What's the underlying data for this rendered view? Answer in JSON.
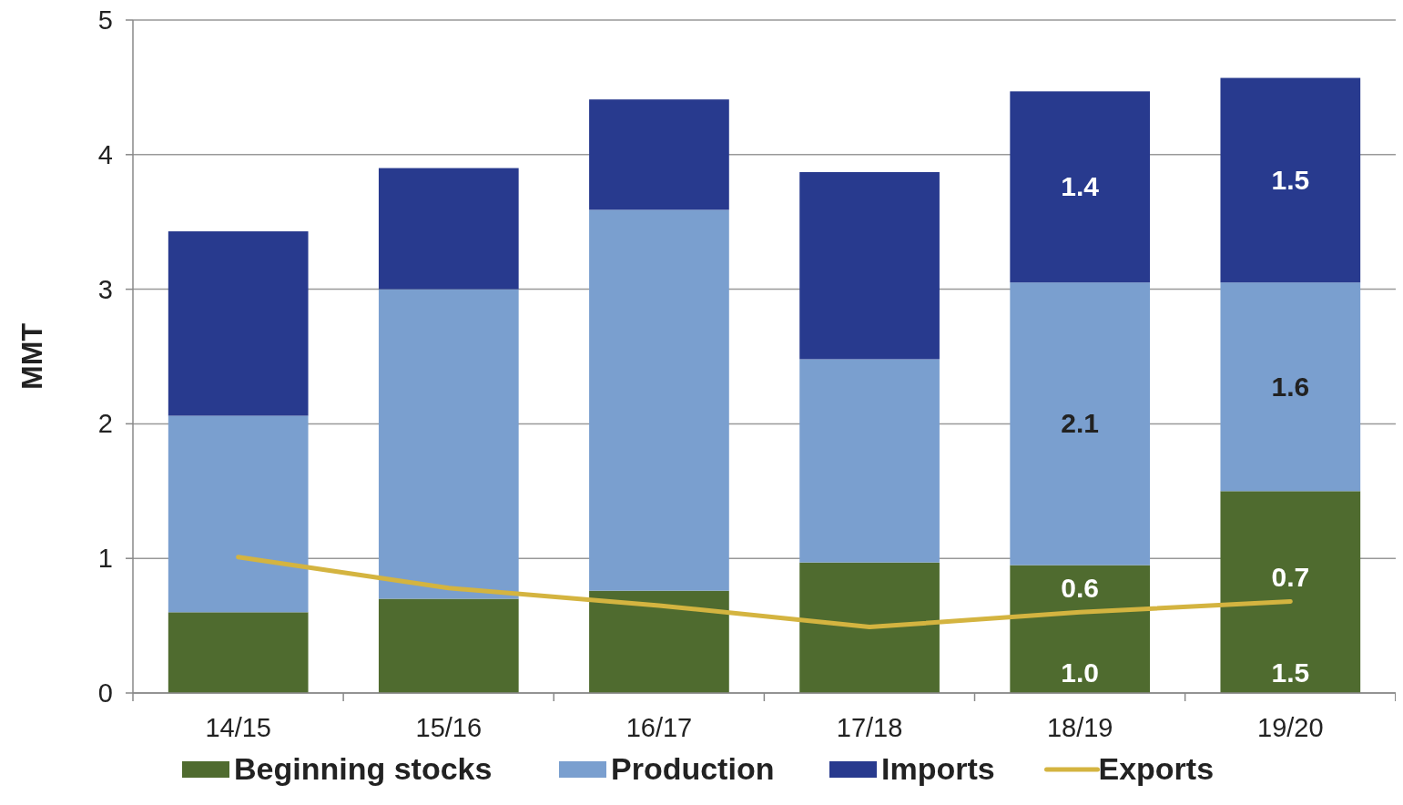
{
  "chart_data": {
    "type": "bar",
    "stacked": true,
    "ylabel": "MMT",
    "categories": [
      "14/15",
      "15/16",
      "16/17",
      "17/18",
      "18/19",
      "19/20"
    ],
    "series": [
      {
        "name": "Beginning stocks",
        "color": "#4f6b2f",
        "values": [
          0.6,
          0.7,
          0.76,
          0.97,
          0.95,
          1.5
        ],
        "value_labels": [
          null,
          null,
          null,
          null,
          "1.0",
          "1.5"
        ]
      },
      {
        "name": "Production",
        "color": "#7a9fcf",
        "values": [
          1.46,
          2.3,
          2.83,
          1.51,
          2.1,
          1.55
        ],
        "value_labels": [
          null,
          null,
          null,
          null,
          "2.1",
          "1.6"
        ]
      },
      {
        "name": "Imports",
        "color": "#283a8e",
        "values": [
          1.37,
          0.9,
          0.82,
          1.39,
          1.42,
          1.52
        ],
        "value_labels": [
          null,
          null,
          null,
          null,
          "1.4",
          "1.5"
        ]
      },
      {
        "name": "Exports",
        "type": "line",
        "color": "#d4b440",
        "values": [
          1.01,
          0.78,
          0.65,
          0.49,
          0.6,
          0.68
        ],
        "value_labels": [
          null,
          null,
          null,
          null,
          "0.6",
          "0.7"
        ]
      }
    ],
    "ylim": [
      0,
      5
    ],
    "yticks": [
      0,
      1,
      2,
      3,
      4,
      5
    ],
    "grid": "y",
    "legend": "bottom"
  }
}
